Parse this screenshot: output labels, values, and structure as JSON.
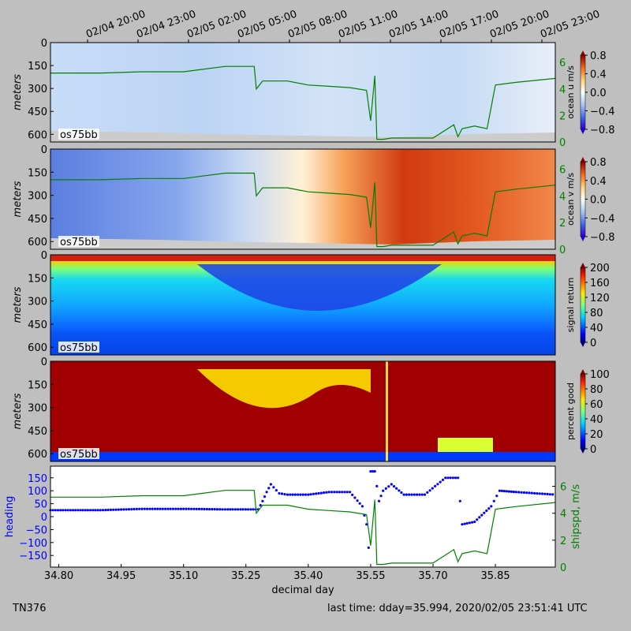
{
  "figure": {
    "footer_left": "TN376",
    "footer_right": "last time: dday=35.994,  2020/02/05 23:51:41 UTC",
    "xlabel": "decimal day",
    "top_date_ticks": [
      "02/04 20:00",
      "02/04 23:00",
      "02/05 02:00",
      "02/05 05:00",
      "02/05 08:00",
      "02/05 11:00",
      "02/05 14:00",
      "02/05 17:00",
      "02/05 20:00",
      "02/05 23:00"
    ]
  },
  "chart_data": [
    {
      "type": "heatmap",
      "ylabel": "meters",
      "tag": "os75bb",
      "colorbar_label": "ocean u m/s",
      "colorbar_ticks": [
        "0.8",
        "0.4",
        "0.0",
        "−0.4",
        "−0.8"
      ],
      "clim": [
        -0.8,
        0.8
      ],
      "colormap": "blue-white-red",
      "yticks": [
        "0",
        "150",
        "300",
        "450",
        "600"
      ],
      "ylim": [
        650,
        0
      ],
      "right_axis_ticks": [
        "6",
        "4",
        "2",
        "0"
      ],
      "xlim": [
        34.78,
        35.994
      ]
    },
    {
      "type": "heatmap",
      "ylabel": "meters",
      "tag": "os75bb",
      "colorbar_label": "ocean v m/s",
      "colorbar_ticks": [
        "0.8",
        "0.4",
        "0.0",
        "−0.4",
        "−0.8"
      ],
      "clim": [
        -0.8,
        0.8
      ],
      "colormap": "blue-white-red",
      "yticks": [
        "0",
        "150",
        "300",
        "450",
        "600"
      ],
      "ylim": [
        650,
        0
      ],
      "right_axis_ticks": [
        "6",
        "4",
        "2",
        "0"
      ],
      "xlim": [
        34.78,
        35.994
      ]
    },
    {
      "type": "heatmap",
      "ylabel": "meters",
      "tag": "os75bb",
      "colorbar_label": "signal return",
      "colorbar_ticks": [
        "200",
        "160",
        "120",
        "80",
        "40",
        "0"
      ],
      "clim": [
        0,
        200
      ],
      "colormap": "jet",
      "yticks": [
        "0",
        "150",
        "300",
        "450",
        "600"
      ],
      "ylim": [
        650,
        0
      ],
      "xlim": [
        34.78,
        35.994
      ]
    },
    {
      "type": "heatmap",
      "ylabel": "meters",
      "tag": "os75bb",
      "colorbar_label": "percent good",
      "colorbar_ticks": [
        "100",
        "80",
        "60",
        "40",
        "20",
        "0"
      ],
      "clim": [
        0,
        100
      ],
      "colormap": "jet",
      "yticks": [
        "0",
        "150",
        "300",
        "450",
        "600"
      ],
      "ylim": [
        650,
        0
      ],
      "xlim": [
        34.78,
        35.994
      ]
    },
    {
      "type": "scatter",
      "ylabel_left": "heading",
      "ylabel_right": "shipspd, m/s",
      "yticks_left": [
        "150",
        "100",
        "50",
        "0",
        "−50",
        "−100",
        "−150"
      ],
      "yticks_right": [
        "6",
        "4",
        "2",
        "0"
      ],
      "xticks": [
        "34.80",
        "34.95",
        "35.10",
        "35.25",
        "35.40",
        "35.55",
        "35.70",
        "35.85"
      ],
      "xlim": [
        34.78,
        35.994
      ],
      "ylim_left": [
        -195,
        195
      ],
      "ylim_right": [
        0,
        7.5
      ],
      "series": [
        {
          "color": "#0000ff",
          "x": [
            34.78,
            34.9,
            35.0,
            35.1,
            35.2,
            35.28,
            35.29,
            35.3,
            35.31,
            35.33,
            35.35,
            35.4,
            35.45,
            35.5,
            35.53,
            35.54,
            35.545,
            35.55,
            35.56,
            35.57,
            35.58,
            35.6,
            35.63,
            35.68,
            35.73,
            35.76,
            35.77,
            35.8,
            35.84,
            35.86,
            35.9,
            35.994
          ],
          "y": [
            25,
            25,
            30,
            30,
            28,
            28,
            60,
            95,
            125,
            90,
            85,
            85,
            95,
            95,
            40,
            -30,
            -120,
            175,
            175,
            60,
            100,
            125,
            85,
            85,
            150,
            150,
            -30,
            -20,
            40,
            100,
            95,
            85
          ]
        },
        {
          "color": "#008000",
          "x": [
            34.78,
            34.9,
            35.0,
            35.1,
            35.2,
            35.27,
            35.275,
            35.29,
            35.35,
            35.4,
            35.45,
            35.5,
            35.54,
            35.55,
            35.56,
            35.565,
            35.57,
            35.58,
            35.6,
            35.7,
            35.75,
            35.76,
            35.77,
            35.8,
            35.83,
            35.85,
            35.9,
            35.994
          ],
          "y": [
            5.2,
            5.2,
            5.3,
            5.3,
            5.7,
            5.7,
            4.0,
            4.6,
            4.6,
            4.3,
            4.2,
            4.1,
            3.9,
            1.6,
            5.0,
            0.2,
            0.2,
            0.2,
            0.3,
            0.3,
            1.3,
            0.4,
            1.0,
            1.2,
            1.0,
            4.3,
            4.5,
            4.8
          ]
        }
      ]
    }
  ]
}
